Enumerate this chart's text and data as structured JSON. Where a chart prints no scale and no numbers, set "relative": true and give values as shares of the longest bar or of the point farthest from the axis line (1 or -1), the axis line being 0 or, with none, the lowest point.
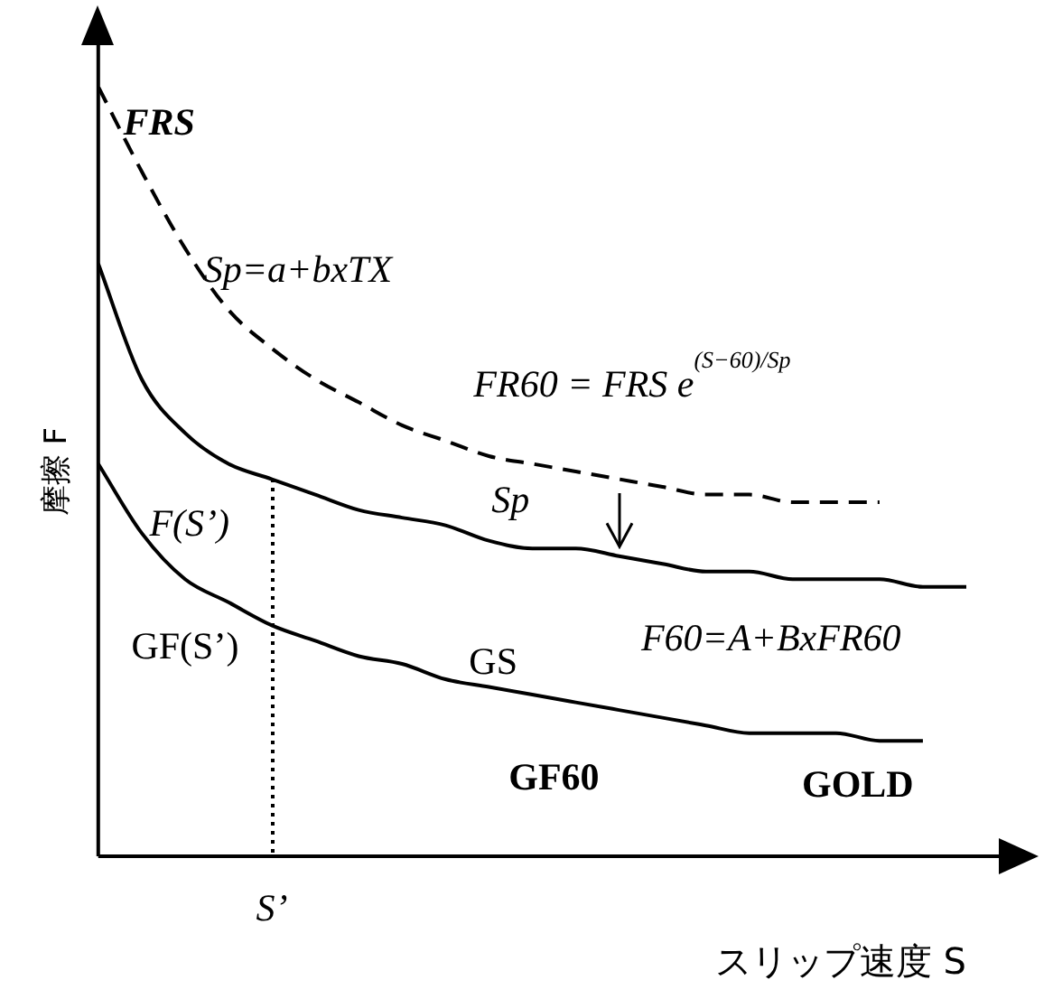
{
  "chart_data": {
    "type": "line",
    "relative": true,
    "xlabel": "スリップ速度 S",
    "ylabel": "摩擦 F",
    "categories": [
      null,
      null,
      null,
      null,
      null,
      null,
      null,
      null,
      null,
      null,
      null,
      null,
      null,
      null,
      null,
      null,
      null,
      null,
      null,
      null,
      null
    ],
    "series": [
      {
        "color": "#000000",
        "line_style": "dashed",
        "values": [
          1,
          0.89,
          0.79,
          0.71,
          0.66,
          0.62,
          0.59,
          0.56,
          0.54,
          0.52,
          0.51,
          0.5,
          0.49,
          0.48,
          0.47,
          0.47,
          0.46,
          0.46,
          0.46,
          null,
          null
        ]
      },
      {
        "color": "#000000",
        "line_style": "solid",
        "values": [
          0.77,
          0.62,
          0.55,
          0.51,
          0.49,
          0.47,
          0.45,
          0.44,
          0.43,
          0.41,
          0.4,
          0.4,
          0.39,
          0.38,
          0.37,
          0.37,
          0.36,
          0.36,
          0.36,
          0.35,
          0.35
        ]
      },
      {
        "color": "#000000",
        "line_style": "solid",
        "values": [
          0.51,
          0.42,
          0.36,
          0.33,
          0.3,
          0.28,
          0.26,
          0.25,
          0.23,
          0.22,
          0.21,
          0.2,
          0.19,
          0.18,
          0.17,
          0.16,
          0.16,
          0.16,
          0.15,
          0.15,
          null
        ]
      }
    ],
    "annotations": [
      "FRS",
      "Sp=a+bxTX",
      "FR60 = FRS e$^{(S−60)/Sp}$",
      "Sp",
      "F(S’)",
      "GF(S’)",
      "GS",
      "F60=A+BxFR60",
      "GF60",
      "GOLD",
      "S’"
    ],
    "grid": false,
    "legend": false,
    "marker": "none"
  }
}
